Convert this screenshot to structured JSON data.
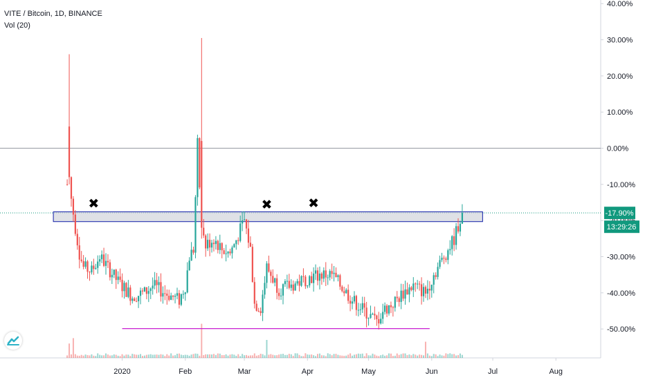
{
  "header": {
    "symbol_line": "VITE / Bitcoin, 1D, BINANCE",
    "indicator_line": "Vol (20)"
  },
  "colors": {
    "up": "#26a69a",
    "down": "#ef5350",
    "zone_border": "#0d1aa6",
    "zone_fill": "#d1d4dc",
    "support_line": "#c81fd1",
    "price_label_bg": "#11997e",
    "marker": "#000000",
    "axis_text": "#131722"
  },
  "chart_data": {
    "type": "candlestick",
    "title": "VITE / Bitcoin, 1D, BINANCE",
    "y_axis": {
      "unit": "%",
      "ticks": [
        "40.00%",
        "30.00%",
        "20.00%",
        "10.00%",
        "0.00%",
        "-10.00%",
        "-20.00%",
        "-30.00%",
        "-40.00%",
        "-50.00%"
      ],
      "tick_values": [
        40,
        30,
        20,
        10,
        0,
        -10,
        -20,
        -30,
        -40,
        -50
      ],
      "range": [
        -58,
        41
      ]
    },
    "x_axis": {
      "ticks": [
        "2020",
        "Feb",
        "Mar",
        "Apr",
        "May",
        "Jun",
        "Jul",
        "Aug"
      ],
      "tick_days": [
        27,
        58,
        87,
        118,
        148,
        179,
        209,
        240
      ],
      "range": [
        -33,
        262
      ]
    },
    "current_value_label": "-17.90%",
    "current_value": -17.9,
    "countdown_label": "13:29:26",
    "baseline_value": 0,
    "resistance_zone": {
      "low": -20.3,
      "high": -17.6,
      "start_day": 0,
      "end_day": 204
    },
    "support_line": {
      "value": -49.9,
      "start_day": 27,
      "end_day": 178
    },
    "markers": [
      {
        "symbol": "✖",
        "day": 13,
        "value": -15.5
      },
      {
        "symbol": "✖",
        "day": 98,
        "value": -15.8
      },
      {
        "symbol": "✖",
        "day": 121,
        "value": -15.4
      }
    ],
    "anchor_days": [
      0,
      2,
      4,
      6,
      8,
      12,
      16,
      20,
      25,
      32,
      38,
      42,
      48,
      55,
      58,
      60,
      62,
      64,
      66,
      68,
      72,
      76,
      80,
      84,
      87,
      90,
      92,
      95,
      98,
      104,
      110,
      118,
      124,
      130,
      140,
      148,
      152,
      155,
      160,
      165,
      170,
      176,
      180,
      186,
      190,
      194
    ],
    "anchor_values": [
      -10,
      -14,
      -22,
      -29,
      -33,
      -34,
      -30,
      -33,
      -37,
      -41,
      -40,
      -38,
      -40,
      -42,
      -38,
      -30,
      -28,
      1,
      -22,
      -27,
      -25,
      -28,
      -29,
      -24,
      -20,
      -28,
      -43,
      -44,
      -33,
      -39,
      -38,
      -36,
      -35,
      -35,
      -42,
      -46,
      -48,
      -45,
      -43,
      -40,
      -38,
      -40,
      -35,
      -29,
      -25,
      -17.9
    ],
    "special_candles": [
      {
        "day": 1,
        "open": 6,
        "close": -8,
        "high": 26,
        "low": -10
      },
      {
        "day": 66,
        "open": 2,
        "close": -22,
        "high": 30.5,
        "low": -25
      }
    ],
    "volume_spikes": [
      {
        "day": 1,
        "value": 0.4
      },
      {
        "day": 3,
        "value": 0.55
      },
      {
        "day": 66,
        "value": 0.95
      },
      {
        "day": 98,
        "value": 0.5
      },
      {
        "day": 176,
        "value": 0.45
      }
    ]
  }
}
